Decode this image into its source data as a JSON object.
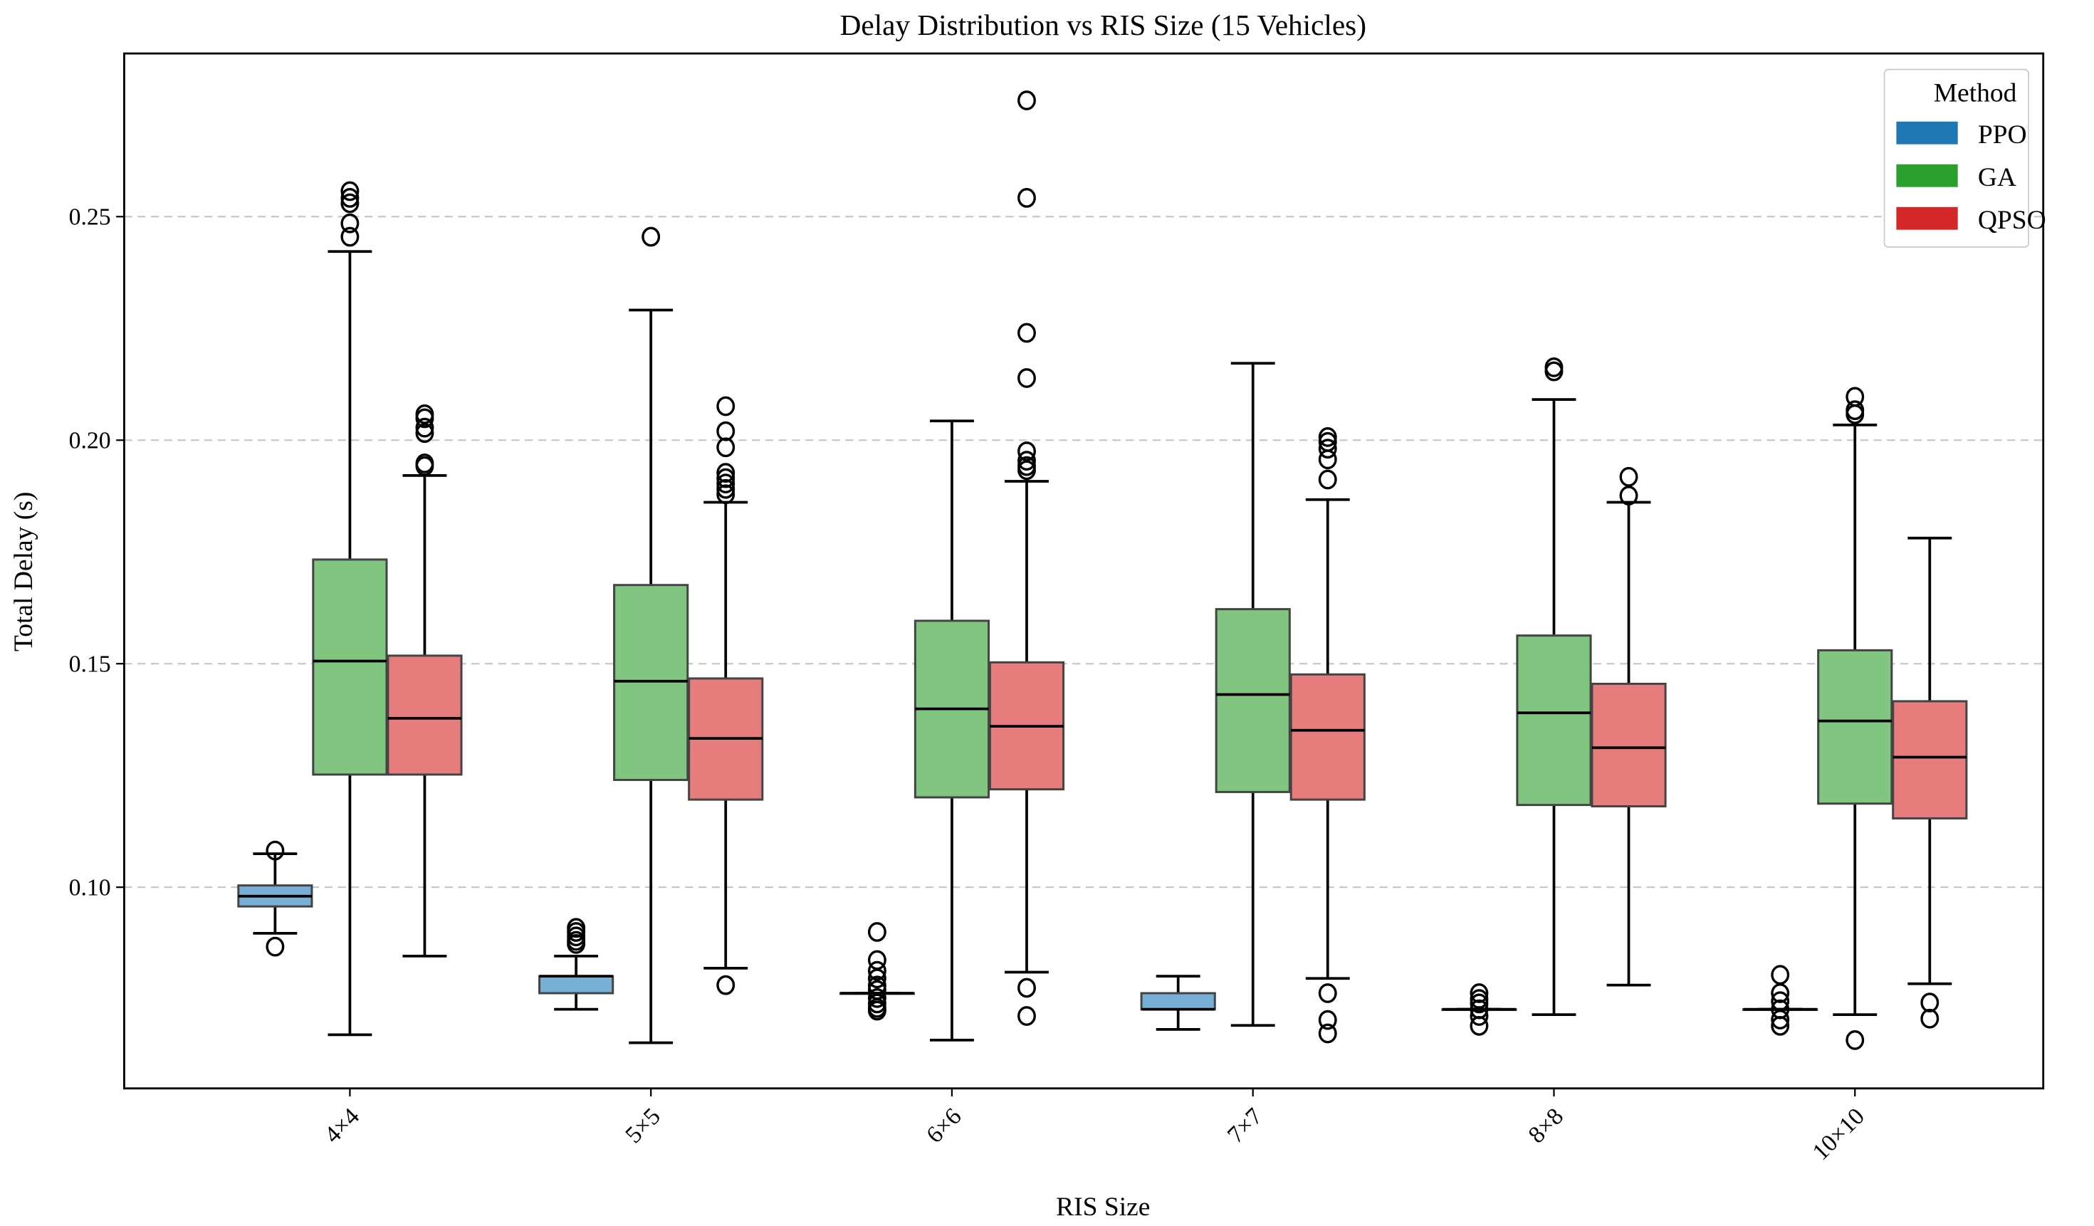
{
  "chart_data": {
    "type": "boxplot",
    "title": "Delay Distribution vs RIS Size (15 Vehicles)",
    "xlabel": "RIS Size",
    "ylabel": "Total Delay (s)",
    "ylim": [
      0.055,
      0.2865
    ],
    "yticks": [
      0.1,
      0.15,
      0.2,
      0.25
    ],
    "ytick_labels": [
      "0.10",
      "0.15",
      "0.20",
      "0.25"
    ],
    "grid": "horizontal dashed",
    "categories": [
      "4×4",
      "5×5",
      "6×6",
      "7×7",
      "8×8",
      "10×10"
    ],
    "legend": {
      "title": "Method",
      "placement": "top-right",
      "entries": [
        "PPO",
        "GA",
        "QPSO"
      ]
    },
    "colors": {
      "PPO": "#1f77b4",
      "GA": "#2ca02c",
      "QPSO": "#d62728"
    },
    "series": [
      {
        "name": "PPO",
        "boxes": [
          {
            "whislo": 0.0897,
            "q1": 0.0957,
            "med": 0.098,
            "q3": 0.1004,
            "whishi": 0.1075,
            "fliers": [
              0.1082,
              0.0867
            ]
          },
          {
            "whislo": 0.0727,
            "q1": 0.0763,
            "med": 0.0801,
            "q3": 0.0801,
            "whishi": 0.0846,
            "fliers": [
              0.0909,
              0.09,
              0.089,
              0.088,
              0.0873
            ]
          },
          {
            "whislo": 0.0763,
            "q1": 0.0763,
            "med": 0.0763,
            "q3": 0.0763,
            "whishi": 0.0763,
            "fliers": [
              0.09,
              0.0837,
              0.0813,
              0.0796,
              0.078,
              0.077,
              0.0752,
              0.074,
              0.073,
              0.0724
            ]
          },
          {
            "whislo": 0.0682,
            "q1": 0.0727,
            "med": 0.0727,
            "q3": 0.0763,
            "whishi": 0.0801,
            "fliers": []
          },
          {
            "whislo": 0.0727,
            "q1": 0.0727,
            "med": 0.0727,
            "q3": 0.0727,
            "whishi": 0.0727,
            "fliers": [
              0.0763,
              0.075,
              0.074,
              0.0727,
              0.0712,
              0.069
            ]
          },
          {
            "whislo": 0.0727,
            "q1": 0.0727,
            "med": 0.0727,
            "q3": 0.0727,
            "whishi": 0.0727,
            "fliers": [
              0.0804,
              0.0763,
              0.0745,
              0.0727,
              0.0704,
              0.069
            ]
          }
        ]
      },
      {
        "name": "GA",
        "boxes": [
          {
            "whislo": 0.067,
            "q1": 0.1252,
            "med": 0.1506,
            "q3": 0.1733,
            "whishi": 0.2422,
            "fliers": [
              0.2557,
              0.2542,
              0.253,
              0.2485,
              0.2455
            ]
          },
          {
            "whislo": 0.0652,
            "q1": 0.124,
            "med": 0.1461,
            "q3": 0.1676,
            "whishi": 0.2291,
            "fliers": [
              0.2455
            ]
          },
          {
            "whislo": 0.0658,
            "q1": 0.1201,
            "med": 0.1399,
            "q3": 0.1596,
            "whishi": 0.2043,
            "fliers": []
          },
          {
            "whislo": 0.0691,
            "q1": 0.1213,
            "med": 0.1431,
            "q3": 0.1622,
            "whishi": 0.2172,
            "fliers": []
          },
          {
            "whislo": 0.0715,
            "q1": 0.1184,
            "med": 0.139,
            "q3": 0.1563,
            "whishi": 0.2091,
            "fliers": [
              0.2163,
              0.2154
            ]
          },
          {
            "whislo": 0.0715,
            "q1": 0.1187,
            "med": 0.1372,
            "q3": 0.153,
            "whishi": 0.2034,
            "fliers": [
              0.2097,
              0.2067,
              0.2058,
              0.0658
            ]
          }
        ]
      },
      {
        "name": "QPSO",
        "boxes": [
          {
            "whislo": 0.0846,
            "q1": 0.1252,
            "med": 0.1378,
            "q3": 0.1518,
            "whishi": 0.1921,
            "fliers": [
              0.2058,
              0.2049,
              0.2028,
              0.2016,
              0.1948,
              0.1942
            ]
          },
          {
            "whislo": 0.0819,
            "q1": 0.1196,
            "med": 0.1333,
            "q3": 0.1467,
            "whishi": 0.1861,
            "fliers": [
              0.2076,
              0.202,
              0.1984,
              0.1927,
              0.1915,
              0.1903,
              0.1891,
              0.1879,
              0.0781
            ]
          },
          {
            "whislo": 0.081,
            "q1": 0.1219,
            "med": 0.136,
            "q3": 0.1503,
            "whishi": 0.1908,
            "fliers": [
              0.276,
              0.2542,
              0.224,
              0.2139,
              0.1975,
              0.1954,
              0.1942,
              0.1933,
              0.0775,
              0.0712
            ]
          },
          {
            "whislo": 0.0796,
            "q1": 0.1196,
            "med": 0.1351,
            "q3": 0.1476,
            "whishi": 0.1867,
            "fliers": [
              0.2007,
              0.1996,
              0.1981,
              0.1957,
              0.1912,
              0.0763,
              0.0703,
              0.0673
            ]
          },
          {
            "whislo": 0.0781,
            "q1": 0.1181,
            "med": 0.1312,
            "q3": 0.1455,
            "whishi": 0.1861,
            "fliers": [
              0.1918,
              0.1876
            ]
          },
          {
            "whislo": 0.0784,
            "q1": 0.1154,
            "med": 0.1291,
            "q3": 0.1416,
            "whishi": 0.1781,
            "fliers": [
              0.0742,
              0.0706
            ]
          }
        ]
      }
    ]
  }
}
